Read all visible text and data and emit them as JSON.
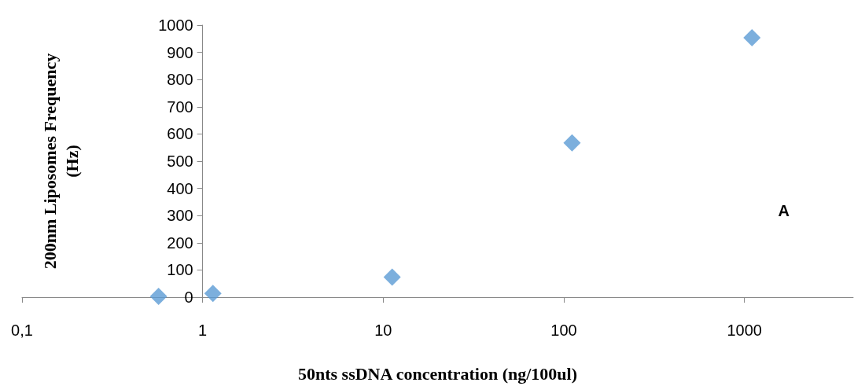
{
  "chart_data": {
    "type": "scatter",
    "xlabel": "50nts ssDNA concentration (ng/100ul)",
    "ylabel": "200nm Liposomes Frequency (Hz)",
    "log": "x",
    "xlim": [
      0.1,
      4000
    ],
    "xticks": [
      {
        "value": 0.1,
        "label": "0,1"
      },
      1,
      10,
      100,
      1000
    ],
    "ylim": [
      0,
      1000
    ],
    "yticks": [
      0,
      100,
      200,
      300,
      400,
      500,
      600,
      700,
      800,
      900,
      1000
    ],
    "x": [
      0.57,
      1.14,
      11.2,
      111,
      1100
    ],
    "series": [
      {
        "color": "#5b9bd5",
        "values": [
          3,
          14,
          74,
          567,
          954
        ]
      }
    ],
    "marker": "diamond",
    "grid": false,
    "annotations": [
      "A"
    ]
  }
}
